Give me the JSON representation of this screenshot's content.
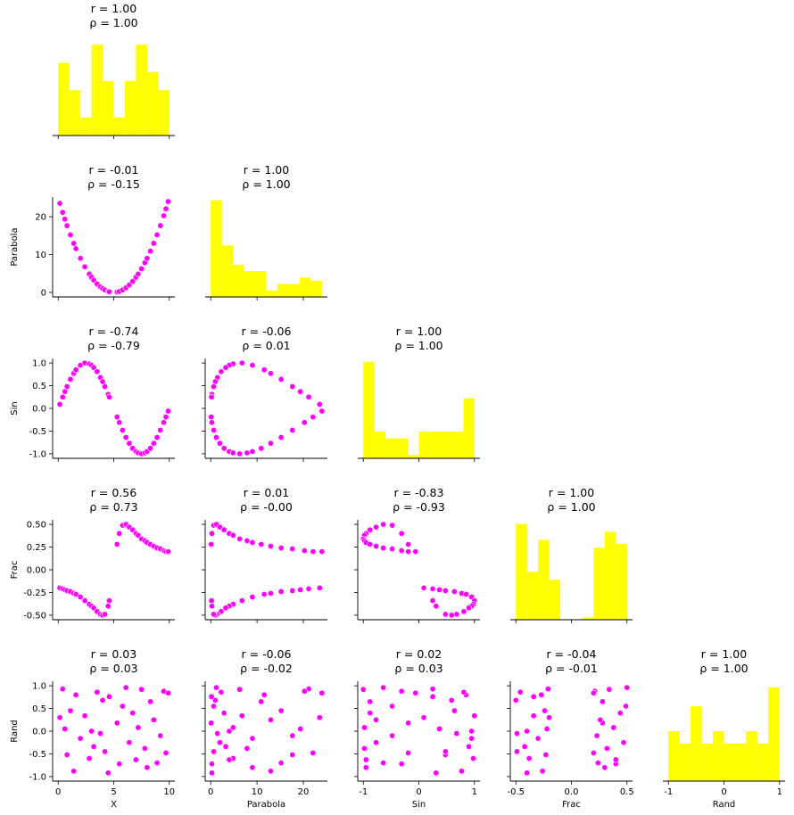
{
  "chart_data": {
    "type": "pairplot",
    "corner": true,
    "scatter_color": "#ff00ff",
    "hist_color": "#ffff00",
    "variables": [
      {
        "name": "X",
        "lim": [
          -0.5,
          10.5
        ],
        "xticks": [
          0,
          5,
          10
        ],
        "yticks": [],
        "values": [
          0.15,
          0.4,
          0.6,
          0.8,
          1.1,
          1.4,
          1.6,
          2.0,
          2.4,
          2.8,
          3.0,
          3.2,
          3.5,
          3.8,
          4.0,
          4.2,
          4.5,
          4.6,
          5.3,
          5.5,
          5.8,
          6.1,
          6.4,
          6.7,
          7.0,
          7.2,
          7.5,
          7.8,
          8.0,
          8.3,
          8.6,
          8.9,
          9.2,
          9.5,
          9.7,
          9.9
        ]
      },
      {
        "name": "Parabola",
        "lim": [
          -1.2,
          25.2
        ],
        "xticks": [
          0,
          10,
          20
        ],
        "yticks": [
          0,
          10,
          20
        ],
        "values": [
          23.52,
          21.16,
          19.36,
          17.64,
          15.21,
          12.96,
          11.56,
          9,
          6.76,
          4.84,
          4,
          3.24,
          2.25,
          1.44,
          1,
          0.64,
          0.25,
          0.16,
          0.09,
          0.25,
          0.64,
          1.21,
          1.96,
          2.89,
          4,
          4.84,
          6.25,
          7.84,
          9,
          10.89,
          12.96,
          15.21,
          17.64,
          20.25,
          22.09,
          24.01
        ]
      },
      {
        "name": "Sin",
        "lim": [
          -1.1,
          1.1
        ],
        "xticks": [
          -1,
          0,
          1
        ],
        "yticks": [
          {
            "value": -1,
            "label": "-1.0"
          },
          -0.5,
          {
            "value": 0,
            "label": "0.0"
          },
          0.5,
          {
            "value": 1,
            "label": "1.0"
          }
        ],
        "values": [
          0.09,
          0.25,
          0.37,
          0.48,
          0.64,
          0.77,
          0.85,
          0.95,
          1.0,
          0.98,
          0.95,
          0.9,
          0.81,
          0.68,
          0.59,
          0.48,
          0.31,
          0.25,
          -0.19,
          -0.31,
          -0.48,
          -0.64,
          -0.77,
          -0.88,
          -0.95,
          -0.98,
          -1.0,
          -0.98,
          -0.95,
          -0.88,
          -0.77,
          -0.64,
          -0.48,
          -0.31,
          -0.19,
          -0.06
        ]
      },
      {
        "name": "Frac",
        "lim": [
          -0.55,
          0.55
        ],
        "xticks": [
          -0.5,
          {
            "value": 0,
            "label": "0.0"
          },
          0.5
        ],
        "yticks": [
          {
            "value": -0.5,
            "label": "-0.50"
          },
          {
            "value": -0.25,
            "label": "-0.25"
          },
          {
            "value": 0,
            "label": "0.00"
          },
          {
            "value": 0.25,
            "label": "0.25"
          },
          {
            "value": 0.5,
            "label": "0.50"
          }
        ],
        "values": [
          -0.2,
          -0.21,
          -0.22,
          -0.23,
          -0.24,
          -0.26,
          -0.27,
          -0.3,
          -0.34,
          -0.38,
          -0.4,
          -0.42,
          -0.46,
          -0.49,
          -0.5,
          -0.49,
          -0.4,
          -0.34,
          0.28,
          0.4,
          0.49,
          0.5,
          0.47,
          0.44,
          0.4,
          0.38,
          0.34,
          0.32,
          0.3,
          0.28,
          0.26,
          0.24,
          0.23,
          0.21,
          0.2,
          0.2
        ]
      },
      {
        "name": "Rand",
        "lim": [
          -1.1,
          1.1
        ],
        "xticks": [
          -1,
          0,
          1
        ],
        "yticks": [
          {
            "value": -1,
            "label": "-1.0"
          },
          -0.5,
          {
            "value": 0,
            "label": "0.0"
          },
          0.5,
          {
            "value": 1,
            "label": "1.0"
          }
        ],
        "values": [
          0.3,
          0.93,
          0.05,
          -0.52,
          0.45,
          -0.88,
          0.8,
          -0.16,
          0.34,
          -0.6,
          0,
          -0.34,
          0.86,
          -0.05,
          0.68,
          -0.45,
          -0.92,
          0.76,
          0.18,
          -0.72,
          0.55,
          0.96,
          -0.25,
          0.4,
          -0.63,
          0.08,
          0.92,
          -0.38,
          -0.8,
          0.65,
          0.25,
          -0.7,
          -0.1,
          0.88,
          -0.48,
          0.84
        ]
      }
    ],
    "histograms": [
      {
        "bins": [
          0,
          1,
          2,
          3,
          4,
          5,
          6,
          7,
          8,
          9,
          10
        ],
        "counts": [
          8,
          5,
          2,
          10,
          6,
          2,
          6,
          10,
          7,
          5
        ],
        "ylim": [
          0,
          11
        ]
      },
      {
        "bins": [
          0,
          2.4,
          4.8,
          7.2,
          9.6,
          12,
          14.4,
          16.8,
          19.2,
          21.6,
          24
        ],
        "counts": [
          15,
          8,
          5,
          4,
          4,
          1,
          2,
          2,
          3,
          2.5
        ],
        "ylim": [
          0,
          15.5
        ]
      },
      {
        "bins": [
          -1,
          -0.8,
          -0.6,
          -0.4,
          -0.2,
          0,
          0.2,
          0.4,
          0.6,
          0.8,
          1
        ],
        "counts": [
          29,
          8,
          6,
          6,
          1,
          8,
          8,
          8,
          8,
          18
        ],
        "ylim": [
          0,
          30
        ]
      },
      {
        "bins": [
          -0.5,
          -0.4,
          -0.3,
          -0.2,
          -0.1,
          0,
          0.1,
          0.2,
          0.3,
          0.4,
          0.5
        ],
        "counts": [
          12,
          6,
          10,
          5,
          0,
          0,
          0.3,
          9,
          11,
          9.5
        ],
        "ylim": [
          0,
          12.5
        ]
      },
      {
        "bins": [
          -1,
          -0.8,
          -0.6,
          -0.4,
          -0.2,
          0,
          0.2,
          0.4,
          0.6,
          0.8,
          1
        ],
        "counts": [
          4,
          3,
          6,
          3,
          4,
          3,
          3,
          4,
          3,
          7.5
        ],
        "ylim": [
          0,
          8
        ]
      }
    ],
    "annotations": [
      [
        {
          "r": "r = 1.00",
          "rho": "ρ = 1.00"
        }
      ],
      [
        {
          "r": "r = -0.01",
          "rho": "ρ = -0.15"
        },
        {
          "r": "r = 1.00",
          "rho": "ρ = 1.00"
        }
      ],
      [
        {
          "r": "r = -0.74",
          "rho": "ρ = -0.79"
        },
        {
          "r": "r = -0.06",
          "rho": "ρ = 0.01"
        },
        {
          "r": "r = 1.00",
          "rho": "ρ = 1.00"
        }
      ],
      [
        {
          "r": "r = 0.56",
          "rho": "ρ = 0.73"
        },
        {
          "r": "r = 0.01",
          "rho": "ρ = -0.00"
        },
        {
          "r": "r = -0.83",
          "rho": "ρ = -0.93"
        },
        {
          "r": "r = 1.00",
          "rho": "ρ = 1.00"
        }
      ],
      [
        {
          "r": "r = 0.03",
          "rho": "ρ = 0.03"
        },
        {
          "r": "r = -0.06",
          "rho": "ρ = -0.02"
        },
        {
          "r": "r = 0.02",
          "rho": "ρ = 0.03"
        },
        {
          "r": "r = -0.04",
          "rho": "ρ = -0.01"
        },
        {
          "r": "r = 1.00",
          "rho": "ρ = 1.00"
        }
      ]
    ]
  }
}
